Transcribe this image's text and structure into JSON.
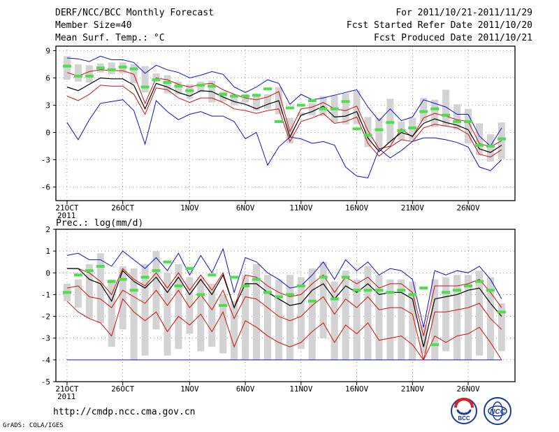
{
  "header": {
    "title": "DERF/NCC/BCC Monthly Forecast",
    "member_size": "Member Size=40",
    "variable": "Mean Surf. Temp.: °C",
    "period": "For 2011/10/21-2011/11/29",
    "started": "Fcst Started Refer Date 2011/10/20",
    "produced": "Fcst Produced Date 2011/10/21"
  },
  "footer": {
    "url": "http://cmdp.ncc.cma.gov.cn",
    "credit": "GrADS: COLA/IGES",
    "logo_left": "BCC",
    "logo_right": "NCC"
  },
  "colors": {
    "max_min": "#1010d0",
    "ensemble_spread": "#d01010",
    "mean": "#000000",
    "member_box": "#d3d3d3",
    "forecast_mark": "#4ddd4d"
  },
  "chart_data": [
    {
      "type": "line",
      "title": "Mean Surf. Temp.: °C",
      "x_ticks": [
        "21OCT",
        "26OCT",
        "1NOV",
        "6NOV",
        "11NOV",
        "16NOV",
        "21NOV",
        "26NOV"
      ],
      "x_tick_days": [
        1,
        6,
        12,
        17,
        22,
        27,
        32,
        37
      ],
      "year_label": "2011",
      "ylim": [
        -7.5,
        9.5
      ],
      "y_ticks": [
        -6,
        -3,
        0,
        3,
        6,
        9
      ],
      "days": [
        1,
        2,
        3,
        4,
        5,
        6,
        7,
        8,
        9,
        10,
        11,
        12,
        13,
        14,
        15,
        16,
        17,
        18,
        19,
        20,
        21,
        22,
        23,
        24,
        25,
        26,
        27,
        28,
        29,
        30,
        31,
        32,
        33,
        34,
        35,
        36,
        37,
        38,
        39,
        40
      ],
      "series": [
        {
          "name": "max",
          "values": [
            8.2,
            8.1,
            7.8,
            8.4,
            8.0,
            8.0,
            7.7,
            6.5,
            7.4,
            6.9,
            6.6,
            6.0,
            6.3,
            6.7,
            6.4,
            5.0,
            4.4,
            5.0,
            5.8,
            5.4,
            3.1,
            4.2,
            3.6,
            3.8,
            4.1,
            4.4,
            4.7,
            2.8,
            1.3,
            2.6,
            1.3,
            1.7,
            3.6,
            3.2,
            2.8,
            2.0,
            2.0,
            -0.4,
            -1.5,
            0.5
          ]
        },
        {
          "name": "upper",
          "values": [
            6.6,
            6.2,
            6.7,
            6.9,
            6.8,
            6.8,
            6.4,
            3.2,
            6.0,
            5.8,
            5.3,
            5.0,
            5.3,
            5.4,
            4.7,
            4.2,
            3.8,
            3.6,
            3.9,
            4.5,
            0.1,
            2.6,
            2.8,
            3.3,
            2.6,
            2.4,
            2.9,
            0.2,
            -1.8,
            -1.5,
            0.4,
            -0.5,
            1.6,
            2.1,
            1.8,
            1.4,
            1.2,
            -1.2,
            -1.6,
            -0.9
          ]
        },
        {
          "name": "mean",
          "values": [
            5.0,
            4.6,
            5.3,
            6.0,
            5.9,
            5.9,
            5.2,
            2.6,
            5.4,
            5.0,
            4.4,
            4.0,
            4.6,
            4.5,
            3.9,
            3.4,
            3.1,
            2.6,
            3.1,
            3.5,
            -0.5,
            1.9,
            2.3,
            2.9,
            1.7,
            1.8,
            2.3,
            -0.6,
            -2.1,
            -1.0,
            0.0,
            -0.4,
            1.0,
            1.5,
            1.1,
            0.8,
            0.3,
            -1.8,
            -2.2,
            -1.4
          ]
        },
        {
          "name": "lower",
          "values": [
            4.0,
            3.5,
            4.2,
            5.2,
            5.1,
            5.1,
            4.2,
            2.0,
            4.9,
            4.7,
            3.8,
            3.3,
            3.8,
            3.8,
            3.3,
            2.6,
            2.4,
            2.1,
            2.4,
            2.6,
            -1.0,
            1.2,
            1.6,
            2.1,
            1.0,
            1.2,
            1.7,
            -1.2,
            -2.6,
            -1.6,
            -0.8,
            -1.0,
            0.5,
            0.9,
            0.7,
            0.5,
            -0.2,
            -2.4,
            -2.7,
            -1.9
          ]
        },
        {
          "name": "min",
          "values": [
            1.1,
            -0.8,
            1.4,
            3.2,
            3.4,
            3.6,
            2.4,
            -1.3,
            3.5,
            2.3,
            1.4,
            2.0,
            2.3,
            1.8,
            1.8,
            1.2,
            -0.7,
            0.0,
            -3.6,
            -1.6,
            -0.5,
            -0.7,
            -1.2,
            -1.0,
            -1.4,
            -3.8,
            -4.8,
            -5.0,
            -1.8,
            -2.8,
            -2.0,
            -1.0,
            -0.6,
            -0.6,
            -0.8,
            -1.1,
            -1.6,
            -3.8,
            -4.2,
            -3.0
          ]
        },
        {
          "name": "box_top",
          "values": [
            8.4,
            7.5,
            7.4,
            7.6,
            7.7,
            7.7,
            7.5,
            7.3,
            6.5,
            6.3,
            5.6,
            5.3,
            5.6,
            5.7,
            4.5,
            4.2,
            4.2,
            4.1,
            4.2,
            5.0,
            1.6,
            2.2,
            3.2,
            4.0,
            4.1,
            4.3,
            4.6,
            1.7,
            1.6,
            3.7,
            1.2,
            1.6,
            3.8,
            3.6,
            4.7,
            3.1,
            2.6,
            1.0,
            -0.2,
            1.1
          ]
        },
        {
          "name": "box_bottom",
          "values": [
            5.8,
            5.6,
            5.5,
            6.6,
            6.4,
            6.5,
            5.4,
            4.4,
            5.6,
            4.3,
            4.2,
            3.7,
            4.4,
            3.3,
            3.4,
            3.0,
            3.3,
            2.4,
            2.6,
            2.0,
            -1.2,
            1.8,
            1.9,
            1.8,
            1.1,
            0.9,
            0.9,
            -1.6,
            -1.8,
            -1.2,
            -0.8,
            -0.8,
            1.2,
            0.6,
            0.7,
            0.3,
            -1.2,
            -2.5,
            -3.2,
            -2.9
          ]
        },
        {
          "name": "forecast",
          "values": [
            7.3,
            6.2,
            6.2,
            7.1,
            6.9,
            7.2,
            7.0,
            5.0,
            5.8,
            5.5,
            5.1,
            4.6,
            5.2,
            5.1,
            4.2,
            4.0,
            4.0,
            4.1,
            4.8,
            1.2,
            2.7,
            3.0,
            3.5,
            2.6,
            2.6,
            3.4,
            0.4,
            -0.3,
            0.3,
            1.1,
            0.2,
            0.5,
            2.3,
            2.6,
            1.9,
            1.2,
            1.2,
            -1.4,
            -1.5,
            -0.7
          ]
        }
      ]
    },
    {
      "type": "line",
      "title": "Prec.: log(mm/d)",
      "x_ticks": [
        "21OCT",
        "26OCT",
        "1NOV",
        "6NOV",
        "11NOV",
        "16NOV",
        "21NOV",
        "26NOV"
      ],
      "x_tick_days": [
        1,
        6,
        12,
        17,
        22,
        27,
        32,
        37
      ],
      "year_label": "2011",
      "ylim": [
        -5,
        2
      ],
      "y_ticks": [
        -5,
        -4,
        -3,
        -2,
        -1,
        0,
        1,
        2
      ],
      "days": [
        1,
        2,
        3,
        4,
        5,
        6,
        7,
        8,
        9,
        10,
        11,
        12,
        13,
        14,
        15,
        16,
        17,
        18,
        19,
        20,
        21,
        22,
        23,
        24,
        25,
        26,
        27,
        28,
        29,
        30,
        31,
        32,
        33,
        34,
        35,
        36,
        37,
        38,
        39,
        40
      ],
      "series": [
        {
          "name": "max",
          "values": [
            0.8,
            0.9,
            0.6,
            0.6,
            0.3,
            1.0,
            0.6,
            0.2,
            0.7,
            0.1,
            0.9,
            -0.1,
            0.8,
            0.0,
            1.1,
            -0.9,
            0.7,
            0.5,
            0.0,
            -0.3,
            -0.7,
            -0.6,
            -0.1,
            0.5,
            -0.3,
            0.6,
            0.1,
            0.5,
            -0.1,
            0.2,
            0.1,
            -0.3,
            -2.5,
            0.1,
            -0.1,
            0.1,
            0.0,
            0.3,
            -0.3,
            -1.2
          ]
        },
        {
          "name": "upper",
          "values": [
            0.2,
            0.2,
            0.0,
            -0.4,
            -1.0,
            0.2,
            -0.3,
            -0.6,
            0.0,
            -0.7,
            0.0,
            -0.8,
            -0.1,
            -0.8,
            0.0,
            -1.6,
            -0.1,
            -0.2,
            -0.6,
            -0.9,
            -1.1,
            -1.0,
            -0.5,
            -0.1,
            -0.9,
            -0.2,
            -0.5,
            -0.2,
            -0.7,
            -0.5,
            -0.5,
            -0.9,
            -2.9,
            -0.6,
            -0.6,
            -0.6,
            -0.5,
            -0.3,
            -0.9,
            -1.6
          ]
        },
        {
          "name": "mean",
          "values": [
            0.2,
            0.2,
            -0.3,
            -0.5,
            -1.3,
            0.1,
            -0.4,
            -0.7,
            -0.2,
            -0.9,
            -0.2,
            -1.0,
            -0.3,
            -1.0,
            -0.1,
            -1.6,
            -0.5,
            -0.5,
            -0.9,
            -1.2,
            -1.5,
            -1.4,
            -0.8,
            -0.5,
            -1.2,
            -0.6,
            -0.9,
            -0.5,
            -1.0,
            -0.9,
            -0.9,
            -1.2,
            -3.4,
            -1.2,
            -1.1,
            -1.0,
            -0.8,
            -0.7,
            -1.4,
            -2.0
          ]
        },
        {
          "name": "lower",
          "values": [
            -0.7,
            -0.6,
            -1.1,
            -1.2,
            -1.6,
            -0.8,
            -1.1,
            -1.4,
            -0.8,
            -1.5,
            -0.8,
            -1.6,
            -1.0,
            -1.7,
            -0.8,
            -2.1,
            -1.1,
            -1.2,
            -1.6,
            -2.0,
            -2.2,
            -2.0,
            -1.5,
            -1.1,
            -1.9,
            -1.2,
            -1.6,
            -1.1,
            -1.7,
            -1.6,
            -1.6,
            -1.9,
            -4.0,
            -1.8,
            -1.8,
            -1.7,
            -1.6,
            -1.4,
            -2.1,
            -2.6
          ]
        },
        {
          "name": "hp",
          "values": [
            -1.3,
            -1.8,
            -2.1,
            -2.3,
            -2.9,
            -1.2,
            -1.8,
            -2.2,
            -1.8,
            -2.7,
            -2.0,
            -2.4,
            -1.9,
            -2.7,
            -1.8,
            -3.4,
            -2.2,
            -2.5,
            -2.9,
            -3.2,
            -3.4,
            -3.2,
            -2.7,
            -2.3,
            -3.2,
            -2.4,
            -2.8,
            -2.3,
            -3.1,
            -3.0,
            -2.9,
            -3.3,
            -4.0,
            -2.9,
            -3.2,
            -2.9,
            -2.8,
            -2.5,
            -3.2,
            -4.0
          ]
        },
        {
          "name": "min",
          "values": [
            -4.0,
            -4.0,
            -4.0,
            -4.0,
            -4.0,
            -4.0,
            -4.0,
            -4.0,
            -4.0,
            -4.0,
            -4.0,
            -4.0,
            -4.0,
            -4.0,
            -4.0,
            -4.0,
            -4.0,
            -4.0,
            -4.0,
            -4.0,
            -4.0,
            -4.0,
            -4.0,
            -4.0,
            -4.0,
            -4.0,
            -4.0,
            -4.0,
            -4.0,
            -4.0,
            -4.0,
            -4.0,
            -4.0,
            -4.0,
            -4.0,
            -4.0,
            -4.0,
            -4.0,
            -4.0,
            -4.0
          ]
        },
        {
          "name": "box_top",
          "values": [
            -0.5,
            -0.3,
            0.4,
            0.9,
            -0.3,
            0.3,
            0.2,
            0.4,
            1.0,
            0.0,
            0.4,
            -0.2,
            -0.2,
            -0.5,
            -1.0,
            -1.3,
            -0.1,
            0.4,
            -0.1,
            -0.3,
            -0.1,
            -0.2,
            0.2,
            0.5,
            -0.4,
            0.1,
            -0.3,
            0.3,
            -0.1,
            -0.3,
            -0.3,
            -0.4,
            -2.4,
            -0.3,
            -0.2,
            -0.1,
            -0.1,
            0.1,
            -0.2,
            -1.4
          ]
        },
        {
          "name": "box_bottom",
          "values": [
            -1.3,
            -1.6,
            -2.1,
            -2.3,
            -3.4,
            -2.6,
            -4.0,
            -3.8,
            -2.6,
            -3.8,
            -3.5,
            -2.8,
            -3.6,
            -3.4,
            -3.7,
            -4.0,
            -4.0,
            -4.0,
            -4.0,
            -4.0,
            -4.0,
            -3.5,
            -4.0,
            -3.0,
            -4.0,
            -4.0,
            -4.0,
            -4.0,
            -4.0,
            -4.0,
            -4.0,
            -4.0,
            -3.7,
            -4.0,
            -3.6,
            -4.0,
            -4.0,
            -3.8,
            -4.0,
            -3.6
          ]
        },
        {
          "name": "forecast",
          "values": [
            -0.9,
            -0.1,
            0.1,
            0.3,
            -0.4,
            -0.3,
            -0.8,
            -0.2,
            0.1,
            0.5,
            -0.6,
            0.2,
            -1.0,
            -0.1,
            -1.5,
            -0.2,
            -0.6,
            -0.3,
            -0.9,
            -1.1,
            -1.0,
            -0.6,
            -1.3,
            -0.2,
            -1.2,
            -0.2,
            -0.8,
            -0.8,
            -0.8,
            -0.9,
            -0.8,
            -1.0,
            -0.7,
            -3.3,
            -0.9,
            -0.8,
            -0.6,
            -0.4,
            -0.8,
            -1.8
          ]
        }
      ]
    }
  ]
}
